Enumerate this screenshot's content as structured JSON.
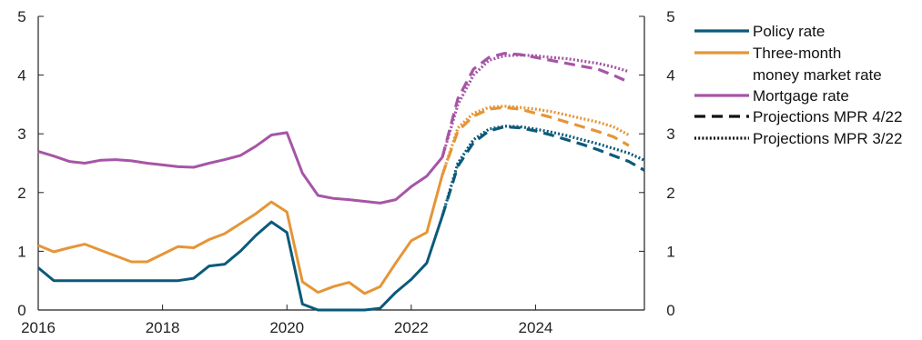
{
  "chart_data": {
    "type": "line",
    "title": "",
    "xlabel": "",
    "ylabel": "",
    "xlim": [
      2016,
      2025.75
    ],
    "ylim": [
      0,
      5
    ],
    "x_ticks": [
      "2016",
      "2018",
      "2020",
      "2022",
      "2024"
    ],
    "y_ticks": [
      "0",
      "1",
      "2",
      "3",
      "4",
      "5"
    ],
    "grid": false,
    "legend_position": "right",
    "series": [
      {
        "name": "Policy rate",
        "color": "#0b5a7a",
        "style": "solid",
        "x": [
          2016.0,
          2016.25,
          2016.5,
          2016.75,
          2017.0,
          2017.25,
          2017.5,
          2017.75,
          2018.0,
          2018.25,
          2018.5,
          2018.75,
          2019.0,
          2019.25,
          2019.5,
          2019.75,
          2020.0,
          2020.25,
          2020.5,
          2020.75,
          2021.0,
          2021.25,
          2021.5,
          2021.75,
          2022.0,
          2022.25,
          2022.5
        ],
        "y": [
          0.72,
          0.5,
          0.5,
          0.5,
          0.5,
          0.5,
          0.5,
          0.5,
          0.5,
          0.5,
          0.54,
          0.75,
          0.78,
          1.0,
          1.27,
          1.5,
          1.32,
          0.1,
          0.0,
          0.0,
          0.0,
          0.0,
          0.03,
          0.3,
          0.52,
          0.8,
          1.6
        ]
      },
      {
        "name": "Three-month money market rate",
        "color": "#e59537",
        "style": "solid",
        "x": [
          2016.0,
          2016.25,
          2016.5,
          2016.75,
          2017.0,
          2017.25,
          2017.5,
          2017.75,
          2018.0,
          2018.25,
          2018.5,
          2018.75,
          2019.0,
          2019.25,
          2019.5,
          2019.75,
          2020.0,
          2020.25,
          2020.5,
          2020.75,
          2021.0,
          2021.25,
          2021.5,
          2021.75,
          2022.0,
          2022.25,
          2022.5
        ],
        "y": [
          1.1,
          0.99,
          1.06,
          1.12,
          1.02,
          0.92,
          0.82,
          0.82,
          0.95,
          1.08,
          1.06,
          1.2,
          1.3,
          1.47,
          1.64,
          1.84,
          1.67,
          0.48,
          0.3,
          0.4,
          0.47,
          0.28,
          0.4,
          0.8,
          1.18,
          1.32,
          2.3
        ]
      },
      {
        "name": "Mortgage rate",
        "color": "#a655a6",
        "style": "solid",
        "x": [
          2016.0,
          2016.25,
          2016.5,
          2016.75,
          2017.0,
          2017.25,
          2017.5,
          2017.75,
          2018.0,
          2018.25,
          2018.5,
          2018.75,
          2019.0,
          2019.25,
          2019.5,
          2019.75,
          2020.0,
          2020.25,
          2020.5,
          2020.75,
          2021.0,
          2021.25,
          2021.5,
          2021.75,
          2022.0,
          2022.25,
          2022.5
        ],
        "y": [
          2.7,
          2.62,
          2.53,
          2.5,
          2.55,
          2.56,
          2.54,
          2.5,
          2.47,
          2.44,
          2.43,
          2.5,
          2.56,
          2.63,
          2.79,
          2.98,
          3.02,
          2.33,
          1.95,
          1.9,
          1.88,
          1.85,
          1.82,
          1.88,
          2.1,
          2.28,
          2.6
        ]
      },
      {
        "name": "Policy rate projection (MPR 4/22)",
        "color": "#0b5a7a",
        "style": "dashed",
        "x": [
          2022.5,
          2022.75,
          2023.0,
          2023.25,
          2023.5,
          2023.75,
          2024.0,
          2024.25,
          2024.5,
          2024.75,
          2025.0,
          2025.25,
          2025.5,
          2025.75
        ],
        "y": [
          1.6,
          2.45,
          2.85,
          3.05,
          3.12,
          3.1,
          3.05,
          2.98,
          2.9,
          2.82,
          2.73,
          2.63,
          2.53,
          2.38
        ]
      },
      {
        "name": "Policy rate projection (MPR 3/22)",
        "color": "#0b5a7a",
        "style": "dotted",
        "x": [
          2022.5,
          2022.75,
          2023.0,
          2023.25,
          2023.5,
          2023.75,
          2024.0,
          2024.25,
          2024.5,
          2024.75,
          2025.0,
          2025.25,
          2025.5,
          2025.75
        ],
        "y": [
          1.6,
          2.5,
          2.9,
          3.08,
          3.13,
          3.12,
          3.08,
          3.03,
          2.97,
          2.9,
          2.83,
          2.75,
          2.67,
          2.55
        ]
      },
      {
        "name": "Three-month money market rate projection (MPR 4/22)",
        "color": "#e59537",
        "style": "dashed",
        "x": [
          2022.5,
          2022.75,
          2023.0,
          2023.25,
          2023.5,
          2023.75,
          2024.0,
          2024.25,
          2024.5,
          2024.75,
          2025.0,
          2025.25,
          2025.5
        ],
        "y": [
          2.3,
          3.05,
          3.3,
          3.42,
          3.45,
          3.42,
          3.35,
          3.28,
          3.2,
          3.12,
          3.04,
          2.95,
          2.8
        ]
      },
      {
        "name": "Three-month money market rate projection (MPR 3/22)",
        "color": "#e59537",
        "style": "dotted",
        "x": [
          2022.5,
          2022.75,
          2023.0,
          2023.25,
          2023.5,
          2023.75,
          2024.0,
          2024.25,
          2024.5,
          2024.75,
          2025.0,
          2025.25,
          2025.5
        ],
        "y": [
          2.3,
          3.1,
          3.35,
          3.45,
          3.47,
          3.45,
          3.42,
          3.38,
          3.32,
          3.26,
          3.2,
          3.12,
          2.98
        ]
      },
      {
        "name": "Mortgage rate projection (MPR 4/22)",
        "color": "#a655a6",
        "style": "dashed",
        "x": [
          2022.5,
          2022.75,
          2023.0,
          2023.25,
          2023.5,
          2023.75,
          2024.0,
          2024.25,
          2024.5,
          2024.75,
          2025.0,
          2025.25,
          2025.5
        ],
        "y": [
          2.6,
          3.6,
          4.1,
          4.3,
          4.37,
          4.35,
          4.3,
          4.25,
          4.2,
          4.15,
          4.1,
          4.0,
          3.88
        ]
      },
      {
        "name": "Mortgage rate projection (MPR 3/22)",
        "color": "#a655a6",
        "style": "dotted",
        "x": [
          2022.5,
          2022.75,
          2023.0,
          2023.25,
          2023.5,
          2023.75,
          2024.0,
          2024.25,
          2024.5,
          2024.75,
          2025.0,
          2025.25,
          2025.5
        ],
        "y": [
          2.6,
          3.5,
          4.0,
          4.25,
          4.33,
          4.34,
          4.33,
          4.3,
          4.28,
          4.24,
          4.2,
          4.14,
          4.06
        ]
      }
    ],
    "legend": [
      {
        "label": "Policy rate",
        "color": "#0b5a7a",
        "style": "solid"
      },
      {
        "label": "Three-month",
        "label2": "money market rate",
        "color": "#e59537",
        "style": "solid"
      },
      {
        "label": "Mortgage rate",
        "color": "#a655a6",
        "style": "solid"
      },
      {
        "label": "Projections MPR 4/22",
        "color": "#111111",
        "style": "dashed"
      },
      {
        "label": "Projections MPR 3/22",
        "color": "#111111",
        "style": "dotted"
      }
    ]
  }
}
